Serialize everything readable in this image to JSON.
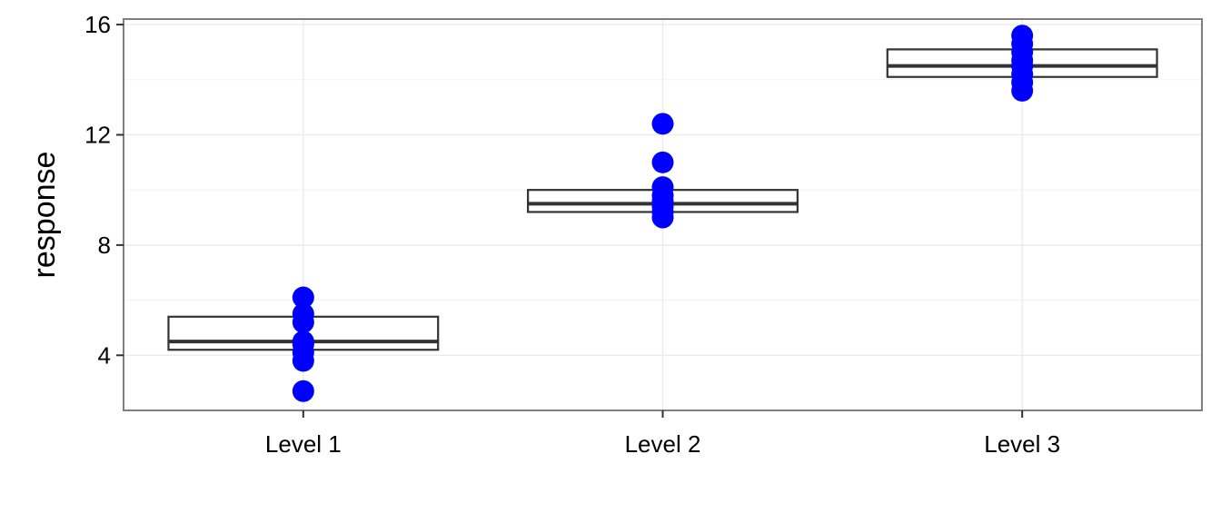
{
  "chart_data": {
    "type": "boxplot",
    "title": "",
    "xlabel": "",
    "ylabel": "response",
    "categories": [
      "Level 1",
      "Level 2",
      "Level 3"
    ],
    "yticks": [
      "4",
      "8",
      "12",
      "16"
    ],
    "ylim": [
      2.0,
      16.2
    ],
    "grid": true,
    "legend": "none",
    "boxes": [
      {
        "category": "Level 1",
        "q1": 4.2,
        "median": 4.5,
        "q3": 5.4
      },
      {
        "category": "Level 2",
        "q1": 9.2,
        "median": 9.5,
        "q3": 10.0
      },
      {
        "category": "Level 3",
        "q1": 14.1,
        "median": 14.5,
        "q3": 15.1
      }
    ],
    "points": [
      {
        "category": "Level 1",
        "values": [
          2.7,
          3.8,
          4.1,
          4.4,
          4.5,
          5.2,
          5.5,
          6.1
        ]
      },
      {
        "category": "Level 2",
        "values": [
          9.0,
          9.2,
          9.4,
          9.6,
          9.8,
          10.1,
          11.0,
          12.4
        ]
      },
      {
        "category": "Level 3",
        "values": [
          13.6,
          13.9,
          14.2,
          14.5,
          14.7,
          15.0,
          15.3,
          15.6
        ]
      }
    ],
    "colors": {
      "points": "#0000ff",
      "box": "#333333",
      "grid": "#ebebeb",
      "frame": "#7f7f7f"
    }
  }
}
